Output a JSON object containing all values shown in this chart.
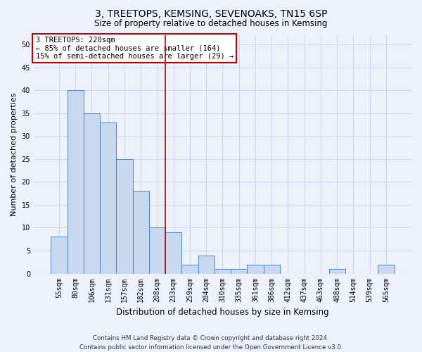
{
  "title": "3, TREETOPS, KEMSING, SEVENOAKS, TN15 6SP",
  "subtitle": "Size of property relative to detached houses in Kemsing",
  "xlabel": "Distribution of detached houses by size in Kemsing",
  "ylabel": "Number of detached properties",
  "categories": [
    "55sqm",
    "80sqm",
    "106sqm",
    "131sqm",
    "157sqm",
    "182sqm",
    "208sqm",
    "233sqm",
    "259sqm",
    "284sqm",
    "310sqm",
    "335sqm",
    "361sqm",
    "386sqm",
    "412sqm",
    "437sqm",
    "463sqm",
    "488sqm",
    "514sqm",
    "539sqm",
    "565sqm"
  ],
  "values": [
    8,
    40,
    35,
    33,
    25,
    18,
    10,
    9,
    2,
    4,
    1,
    1,
    2,
    2,
    0,
    0,
    0,
    1,
    0,
    0,
    2
  ],
  "bar_color": "#c8d8ee",
  "bar_edge_color": "#4e86c0",
  "vline_index": 7,
  "vline_color": "#c00000",
  "annotation_line1": "3 TREETOPS: 220sqm",
  "annotation_line2": "← 85% of detached houses are smaller (164)",
  "annotation_line3": "15% of semi-detached houses are larger (29) →",
  "annotation_box_color": "#ffffff",
  "annotation_box_edge_color": "#c00000",
  "ylim": [
    0,
    52
  ],
  "yticks": [
    0,
    5,
    10,
    15,
    20,
    25,
    30,
    35,
    40,
    45,
    50
  ],
  "footnote": "Contains HM Land Registry data © Crown copyright and database right 2024.\nContains public sector information licensed under the Open Government Licence v3.0.",
  "grid_color": "#cdd8ec",
  "background_color": "#edf2fa",
  "title_fontsize": 10,
  "subtitle_fontsize": 8.5,
  "ylabel_fontsize": 8,
  "xlabel_fontsize": 8.5,
  "tick_fontsize": 7
}
